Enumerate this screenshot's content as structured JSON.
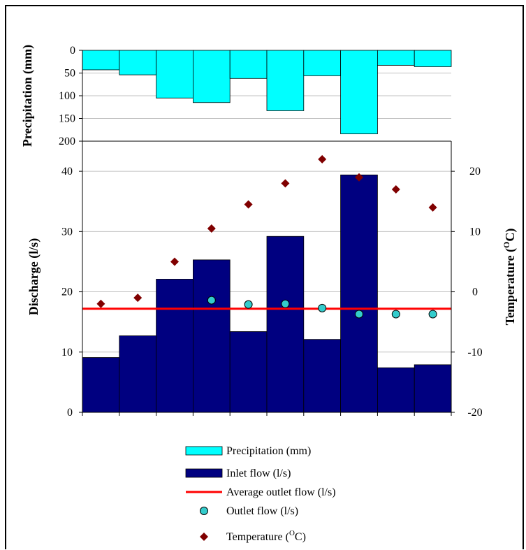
{
  "chart_data": {
    "type": "bar",
    "categories": [
      "",
      "",
      "",
      "",
      "",
      "",
      "",
      "",
      "",
      ""
    ],
    "precipitation": {
      "ylabel": "Precipitation (mm)",
      "ylim": [
        0,
        200
      ],
      "yticks": [
        0,
        50,
        100,
        150,
        200
      ],
      "inverted": true,
      "color": "#00ffff",
      "values": [
        43,
        54,
        105,
        115,
        62,
        133,
        56,
        184,
        33,
        36
      ]
    },
    "discharge": {
      "ylabel": "Discharge (l/s)",
      "ylim": [
        0,
        45
      ],
      "yticks": [
        0,
        10,
        20,
        30,
        40
      ],
      "inlet_color": "#000080",
      "inlet": [
        9.1,
        12.7,
        22.1,
        25.3,
        13.4,
        29.2,
        12.1,
        39.4,
        7.4,
        7.9
      ],
      "average_outlet": 17.2,
      "average_color": "#ff0000",
      "outlet_color": "#33cccc",
      "outlet": [
        null,
        null,
        null,
        18.6,
        17.9,
        18.0,
        17.3,
        16.3,
        16.3,
        16.3
      ]
    },
    "temperature": {
      "ylabel": "Temperature (°C)",
      "ylabel_base": "Temperature (",
      "ylabel_sup": "O",
      "ylabel_end": "C)",
      "ylim": [
        -20,
        25
      ],
      "yticks": [
        -20,
        -10,
        0,
        10,
        20
      ],
      "color": "#800000",
      "values": [
        -2,
        -1,
        5,
        10.5,
        14.5,
        18,
        22,
        19,
        17,
        14
      ]
    },
    "legend": [
      {
        "key": "precip",
        "label": "Precipitation (mm)"
      },
      {
        "key": "inlet",
        "label": "Inlet flow (l/s)"
      },
      {
        "key": "avg",
        "label": "Average outlet flow (l/s)"
      },
      {
        "key": "outlet",
        "label": "Outlet flow (l/s)"
      },
      {
        "key": "temp",
        "label_base": "Temperature (",
        "label_sup": "O",
        "label_end": "C)"
      }
    ],
    "grid": true,
    "legend_placement": "bottom-center"
  }
}
